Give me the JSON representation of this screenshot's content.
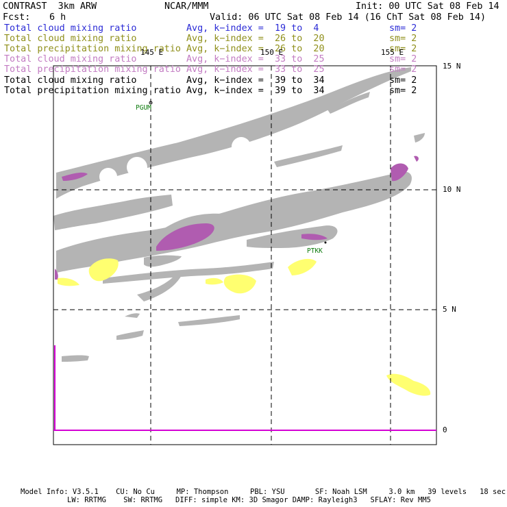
{
  "header": {
    "model": "CONTRAST  3km ARW",
    "center": "NCAR/MMM",
    "init": "Init: 00 UTC Sat 08 Feb 14",
    "fcst_label": "Fcst:",
    "fcst_value": "6 h",
    "valid": "Valid: 06 UTC Sat 08 Feb 14 (16 ChT Sat 08 Feb 14)"
  },
  "legend": [
    {
      "field": "Total cloud mixing ratio",
      "avg": "Avg, k−index =  19 to  4",
      "sm": "sm= 2",
      "color": "#2b2bd6"
    },
    {
      "field": "Total cloud mixing ratio",
      "avg": "Avg, k−index =  26 to  20",
      "sm": "sm= 2",
      "color": "#8f8f1a"
    },
    {
      "field": "Total precipitation mixing ratio",
      "avg": "Avg, k−index =  26 to  20",
      "sm": "sm= 2",
      "color": "#8f8f1a"
    },
    {
      "field": "Total cloud mixing ratio",
      "avg": "Avg, k−index =  33 to  25",
      "sm": "sm= 2",
      "color": "#c27bc2"
    },
    {
      "field": "Total precipitation mixing ratio",
      "avg": "Avg, k−index =  33 to  25",
      "sm": "sm= 2",
      "color": "#c27bc2"
    },
    {
      "field": "Total cloud mixing ratio",
      "avg": "Avg, k−index =  39 to  34",
      "sm": "sm= 2",
      "color": "#000000"
    },
    {
      "field": "Total precipitation mixing ratio",
      "avg": "Avg, k−index =  39 to  34",
      "sm": "sm= 2",
      "color": "#000000"
    }
  ],
  "map": {
    "lon_labels": [
      "145 E",
      "150 E",
      "155 E"
    ],
    "lat_labels": [
      "15 N",
      "10 N",
      "5 N",
      "0"
    ],
    "stations": [
      "PGUM",
      "PTKK"
    ],
    "colors": {
      "cloud_gray": "#b4b4b4",
      "purple": "#b05cb0",
      "yellow": "#ffff70",
      "magenta": "#d400d4"
    }
  },
  "footer": {
    "line1": "Model Info: V3.5.1    CU: No Cu     MP: Thompson     PBL: YSU       SF: Noah LSM     3.0 km   39 levels   18 sec",
    "line2": "LW: RRTMG    SW: RRTMG   DIFF: simple KM: 3D Smagor DAMP: Rayleigh3   SFLAY: Rev MM5"
  }
}
